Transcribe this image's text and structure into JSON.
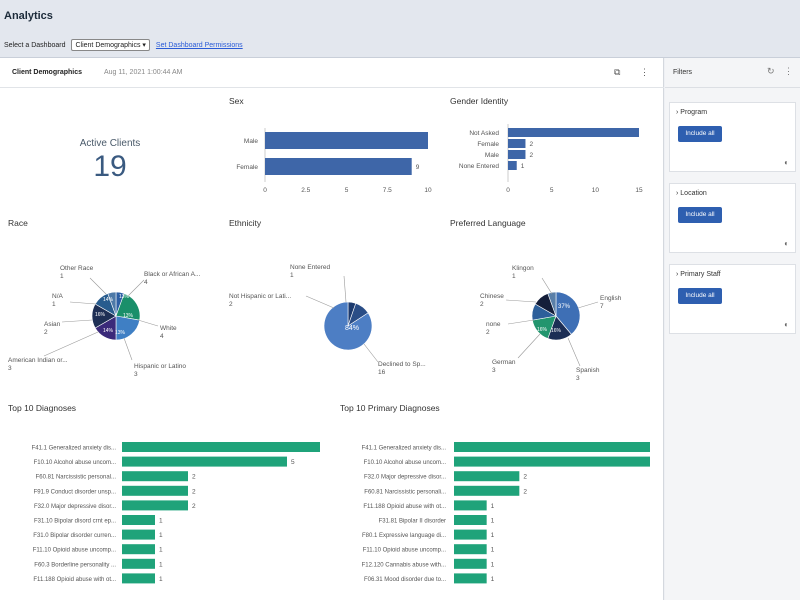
{
  "app": {
    "title": "Analytics"
  },
  "dashboard_selector": {
    "label": "Select a Dashboard",
    "selected": "Client Demographics ▾",
    "perm_link": "Set Dashboard Permissions"
  },
  "dashboard": {
    "name": "Client Demographics",
    "date": "Aug 11, 2021 1:00:44 AM"
  },
  "kpi": {
    "label": "Active Clients",
    "value": "19"
  },
  "titles": {
    "sex": "Sex",
    "gender": "Gender Identity",
    "race": "Race",
    "ethnicity": "Ethnicity",
    "language": "Preferred Language",
    "top_dx": "Top 10 Diagnoses",
    "top_primary_dx": "Top 10 Primary Diagnoses"
  },
  "filters": {
    "title": "Filters",
    "items": [
      {
        "label": "Program",
        "button": "Include all"
      },
      {
        "label": "Location",
        "button": "Include all"
      },
      {
        "label": "Primary Staff",
        "button": "Include all"
      }
    ]
  },
  "chart_data": [
    {
      "type": "bar",
      "orientation": "horizontal",
      "categories": [
        "Male",
        "Female"
      ],
      "values": [
        10,
        9
      ],
      "xlim": [
        0,
        10
      ],
      "xticks": [
        "0",
        "2.5",
        "5",
        "7.5",
        "10"
      ],
      "data_labels": [
        "",
        "9"
      ]
    },
    {
      "type": "bar",
      "orientation": "horizontal",
      "categories": [
        "Not Asked",
        "Female",
        "Male",
        "None Entered"
      ],
      "values": [
        15,
        2,
        2,
        1
      ],
      "xlim": [
        0,
        15
      ],
      "xticks": [
        "0",
        "5",
        "10",
        "15"
      ],
      "data_labels": [
        "",
        "2",
        "2",
        "1"
      ]
    },
    {
      "type": "pie",
      "slices": [
        {
          "label": "Other Race",
          "count": "1",
          "value": 1,
          "color": "#2d5fa4"
        },
        {
          "label": "Black or African A...",
          "count": "4",
          "value": 4,
          "color": "#1a8f6a"
        },
        {
          "label": "White",
          "count": "4",
          "value": 4,
          "color": "#3f7fc4"
        },
        {
          "label": "Hispanic or Latino",
          "count": "3",
          "value": 3,
          "color": "#3b2a7a"
        },
        {
          "label": "American Indian or...",
          "count": "3",
          "value": 3,
          "color": "#1e2f55"
        },
        {
          "label": "Asian",
          "count": "2",
          "value": 2,
          "color": "#285c8e"
        },
        {
          "label": "N/A",
          "count": "1",
          "value": 1,
          "color": "#4e7aa8"
        }
      ],
      "slice_labels": [
        "13%",
        "13%",
        "13%",
        "14%",
        "16%",
        "14%"
      ]
    },
    {
      "type": "pie",
      "slices": [
        {
          "label": "None Entered",
          "count": "1",
          "value": 1,
          "color": "#1c3a6e"
        },
        {
          "label": "Not Hispanic or Lati...",
          "count": "2",
          "value": 2,
          "color": "#2a4d86"
        },
        {
          "label": "Declined to Sp...",
          "count": "16",
          "value": 16,
          "color": "#4d7ec4"
        }
      ],
      "slice_labels": [
        "84%"
      ]
    },
    {
      "type": "pie",
      "slices": [
        {
          "label": "English",
          "count": "7",
          "value": 7,
          "color": "#3e6fb5"
        },
        {
          "label": "Spanish",
          "count": "3",
          "value": 3,
          "color": "#1c2e55"
        },
        {
          "label": "German",
          "count": "3",
          "value": 3,
          "color": "#22956e"
        },
        {
          "label": "none",
          "count": "2",
          "value": 2,
          "color": "#2d5f9a"
        },
        {
          "label": "Chinese",
          "count": "2",
          "value": 2,
          "color": "#141e3a"
        },
        {
          "label": "Klingon",
          "count": "1",
          "value": 1,
          "color": "#5a7fa8"
        }
      ],
      "slice_labels": [
        "37%",
        "16%",
        "16%"
      ]
    },
    {
      "type": "bar",
      "orientation": "horizontal",
      "categories": [
        "F41.1 Generalized anxiety dis...",
        "F10.10 Alcohol abuse uncom...",
        "F60.81 Narcissistic personal...",
        "F91.9 Conduct disorder unsp...",
        "F32.0 Major depressive disor...",
        "F31.10 Bipolar disord crnt ep...",
        "F31.0 Bipolar disorder curren...",
        "F11.10 Opioid abuse uncomp...",
        "F60.3 Borderline personality ...",
        "F11.188 Opioid abuse with ot..."
      ],
      "values": [
        6,
        5,
        2,
        2,
        2,
        1,
        1,
        1,
        1,
        1
      ],
      "data_labels": [
        "",
        "5",
        "2",
        "2",
        "2",
        "1",
        "1",
        "1",
        "1",
        "1"
      ],
      "color": "#1fa37a"
    },
    {
      "type": "bar",
      "orientation": "horizontal",
      "categories": [
        "F41.1 Generalized anxiety dis...",
        "F10.10 Alcohol abuse uncom...",
        "F32.0 Major depressive disor...",
        "F60.81 Narcissistic personali...",
        "F11.188 Opioid abuse with ot...",
        "F31.81 Bipolar II disorder",
        "F80.1 Expressive language di...",
        "F11.10 Opioid abuse uncomp...",
        "F12.120 Cannabis abuse with...",
        "F06.31 Mood disorder due to..."
      ],
      "values": [
        6,
        6,
        2,
        2,
        1,
        1,
        1,
        1,
        1,
        1
      ],
      "data_labels": [
        "",
        "",
        "2",
        "2",
        "1",
        "1",
        "1",
        "1",
        "1",
        "1"
      ],
      "color": "#1fa37a"
    }
  ]
}
